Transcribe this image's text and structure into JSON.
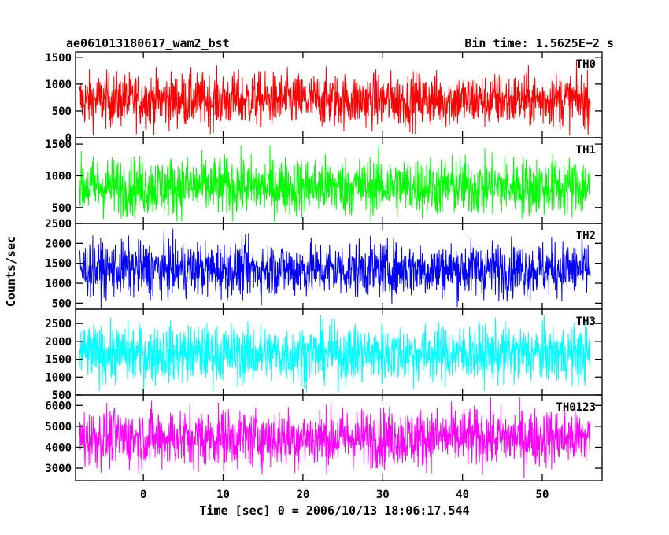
{
  "chart_data": {
    "type": "line",
    "title_left": "ae061013180617_wam2_bst",
    "title_right": "Bin time: 1.5625E−2 s",
    "xlabel": "Time [sec] 0 = 2006/10/13 18:06:17.544",
    "ylabel": "Counts/sec",
    "xlim": [
      -8.5,
      57.5
    ],
    "data_x_range": [
      -8.0,
      56.0
    ],
    "bin_time_s": 0.015625,
    "x_ticks": [
      0,
      10,
      20,
      30,
      40,
      50
    ],
    "grid": false,
    "panels": [
      {
        "name": "TH0",
        "color": "#ff0000",
        "ylim": [
          0,
          1600
        ],
        "y_ticks": [
          0,
          500,
          1000,
          1500
        ],
        "baseline": 700,
        "spread": 250,
        "min": 20,
        "max": 1600
      },
      {
        "name": "TH1",
        "color": "#00ff00",
        "ylim": [
          250,
          1600
        ],
        "y_ticks": [
          500,
          1000,
          1500
        ],
        "baseline": 830,
        "spread": 230,
        "min": 280,
        "max": 1600
      },
      {
        "name": "TH2",
        "color": "#0000ff",
        "ylim": [
          350,
          2500
        ],
        "y_ticks": [
          500,
          1000,
          1500,
          2000,
          2500
        ],
        "baseline": 1350,
        "spread": 340,
        "min": 380,
        "max": 2450
      },
      {
        "name": "TH3",
        "color": "#00ffff",
        "ylim": [
          500,
          2900
        ],
        "y_ticks": [
          500,
          1000,
          1500,
          2000,
          2500
        ],
        "baseline": 1650,
        "spread": 400,
        "min": 560,
        "max": 2850
      },
      {
        "name": "TH0123",
        "color": "#ff00ff",
        "ylim": [
          2400,
          6500
        ],
        "y_ticks": [
          3000,
          4000,
          5000,
          6000
        ],
        "baseline": 4450,
        "spread": 700,
        "min": 2450,
        "max": 6400
      }
    ]
  }
}
